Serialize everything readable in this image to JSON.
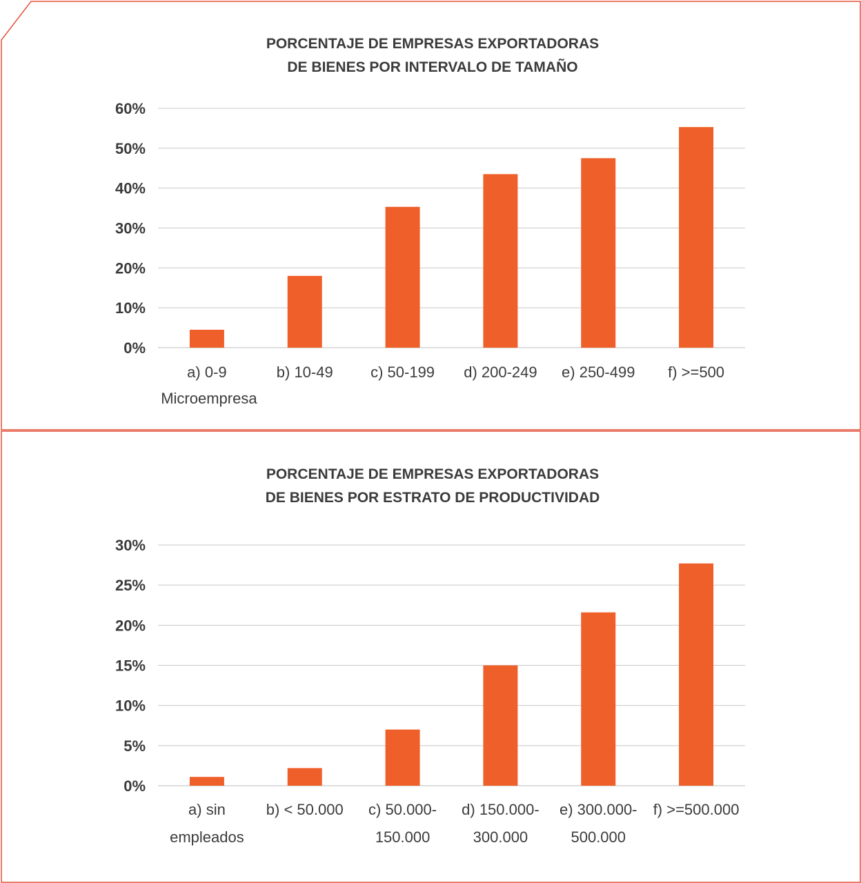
{
  "colors": {
    "bar": "#ef5f2a",
    "frame": "#e4503a",
    "text": "#3b3b3b",
    "grid": "#c8c8c8"
  },
  "chart_data": [
    {
      "type": "bar",
      "title_lines": [
        "PORCENTAJE DE EMPRESAS EXPORTADORAS",
        "DE BIENES POR INTERVALO DE TAMAÑO"
      ],
      "categories": [
        [
          "a) 0-9",
          "Microempresa"
        ],
        [
          "b) 10-49"
        ],
        [
          "c) 50-199"
        ],
        [
          "d) 200-249"
        ],
        [
          "e) 250-499"
        ],
        [
          "f) >=500"
        ]
      ],
      "values": [
        4.5,
        18.0,
        35.3,
        43.5,
        47.5,
        55.3
      ],
      "ylim": [
        0,
        60
      ],
      "yticks": [
        0,
        10,
        20,
        30,
        40,
        50,
        60
      ],
      "ytick_labels": [
        "0%",
        "10%",
        "20%",
        "30%",
        "40%",
        "50%",
        "60%"
      ],
      "grid": true,
      "legend": "none"
    },
    {
      "type": "bar",
      "title_lines": [
        "PORCENTAJE DE EMPRESAS EXPORTADORAS",
        "DE BIENES POR ESTRATO DE PRODUCTIVIDAD"
      ],
      "categories": [
        [
          "a) sin",
          "empleados"
        ],
        [
          "b) < 50.000"
        ],
        [
          "c) 50.000-",
          "150.000"
        ],
        [
          "d) 150.000-",
          "300.000"
        ],
        [
          "e) 300.000-",
          "500.000"
        ],
        [
          "f) >=500.000"
        ]
      ],
      "values": [
        1.1,
        2.2,
        7.0,
        15.0,
        21.6,
        27.7
      ],
      "ylim": [
        0,
        30
      ],
      "yticks": [
        0,
        5,
        10,
        15,
        20,
        25,
        30
      ],
      "ytick_labels": [
        "0%",
        "5%",
        "10%",
        "15%",
        "20%",
        "25%",
        "30%"
      ],
      "grid": true,
      "legend": "none"
    }
  ]
}
